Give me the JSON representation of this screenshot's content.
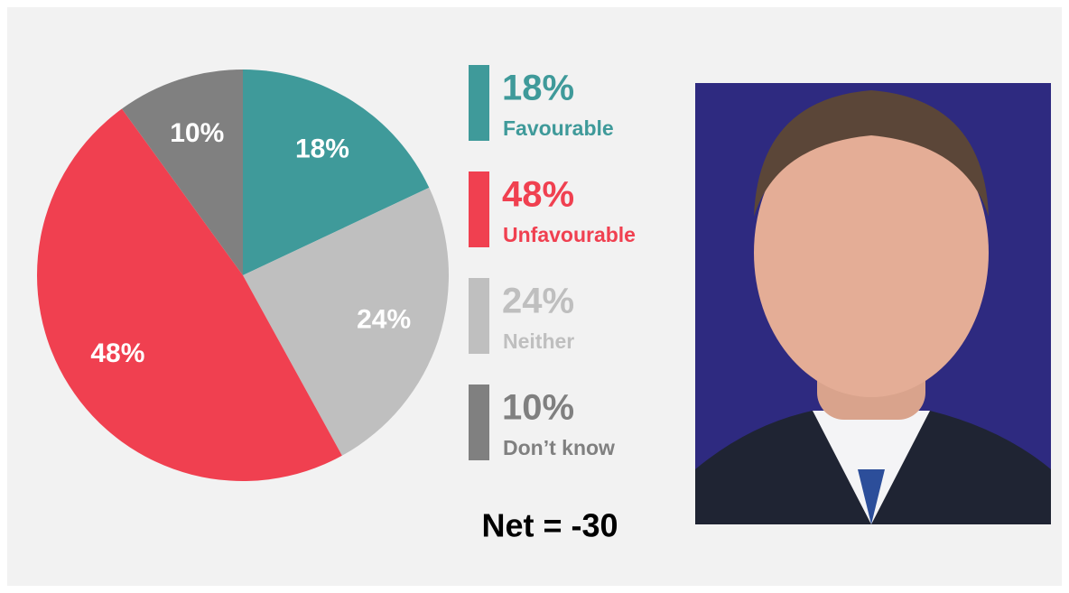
{
  "chart_data": {
    "type": "pie",
    "categories": [
      "Favourable",
      "Neither",
      "Unfavourable",
      "Don’t know"
    ],
    "values": [
      18,
      24,
      48,
      10
    ],
    "value_labels": [
      "18%",
      "24%",
      "48%",
      "10%"
    ],
    "colors": [
      "#3f9a9a",
      "#bfbfbf",
      "#f04050",
      "#808080"
    ],
    "annotation": "Net = -30"
  }
}
